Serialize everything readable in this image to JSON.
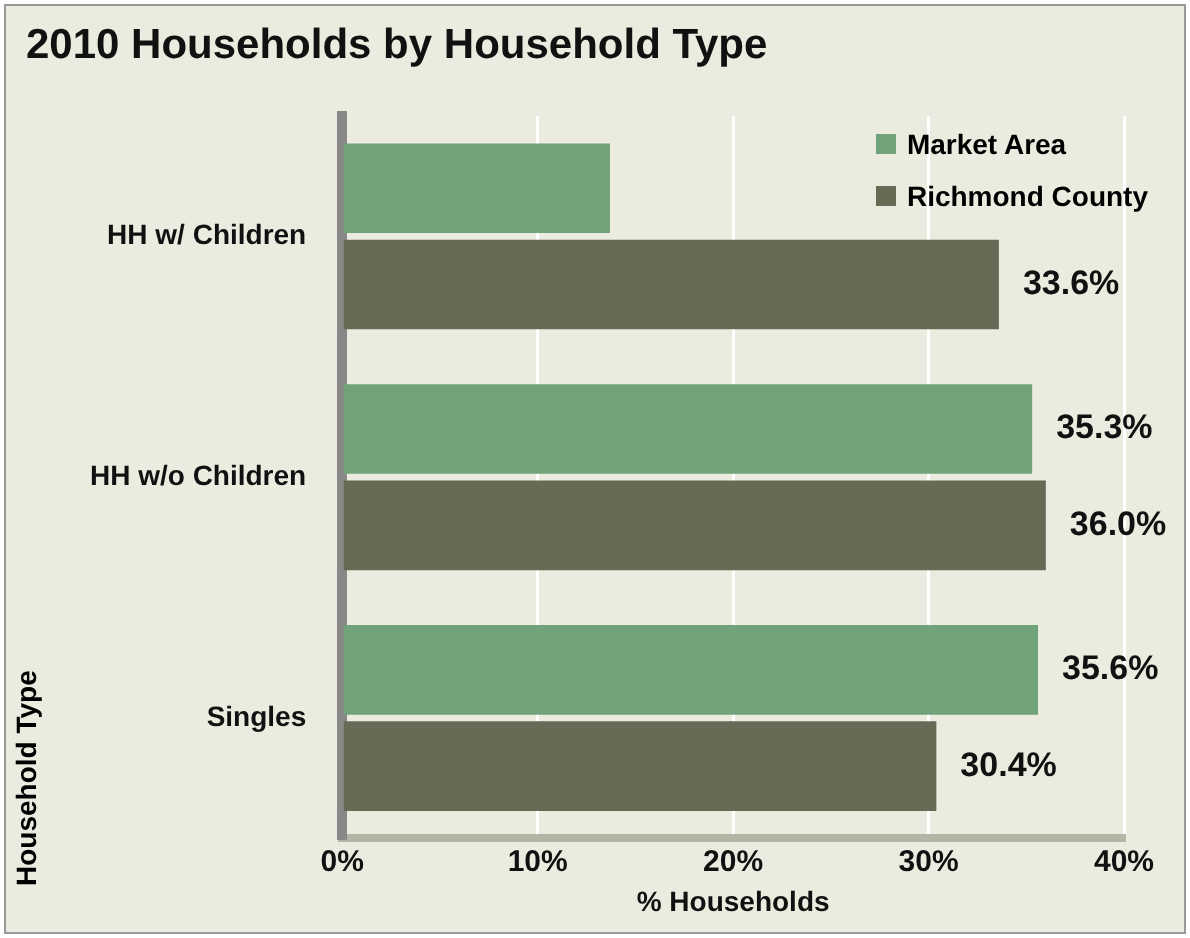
{
  "chart_data": {
    "type": "bar",
    "orientation": "horizontal",
    "title": "2010 Households by Household Type",
    "xlabel": "% Households",
    "ylabel": "Household Type",
    "categories": [
      "HH w/ Children",
      "HH w/o Children",
      "Singles"
    ],
    "series": [
      {
        "name": "Market Area",
        "color": "#70a37a",
        "values": [
          13.7,
          35.3,
          35.6
        ],
        "value_labels": [
          null,
          "35.3%",
          "35.6%"
        ]
      },
      {
        "name": "Richmond County",
        "color": "#666b55",
        "values": [
          33.6,
          36.0,
          30.4
        ],
        "value_labels": [
          "33.6%",
          "36.0%",
          "30.4%"
        ]
      }
    ],
    "xlim": [
      0,
      40
    ],
    "xticks": [
      {
        "value": 0,
        "label": "0%"
      },
      {
        "value": 10,
        "label": "10%"
      },
      {
        "value": 20,
        "label": "20%"
      },
      {
        "value": 30,
        "label": "30%"
      },
      {
        "value": 40,
        "label": "40%"
      }
    ],
    "grid": "x",
    "legend": "top right"
  }
}
